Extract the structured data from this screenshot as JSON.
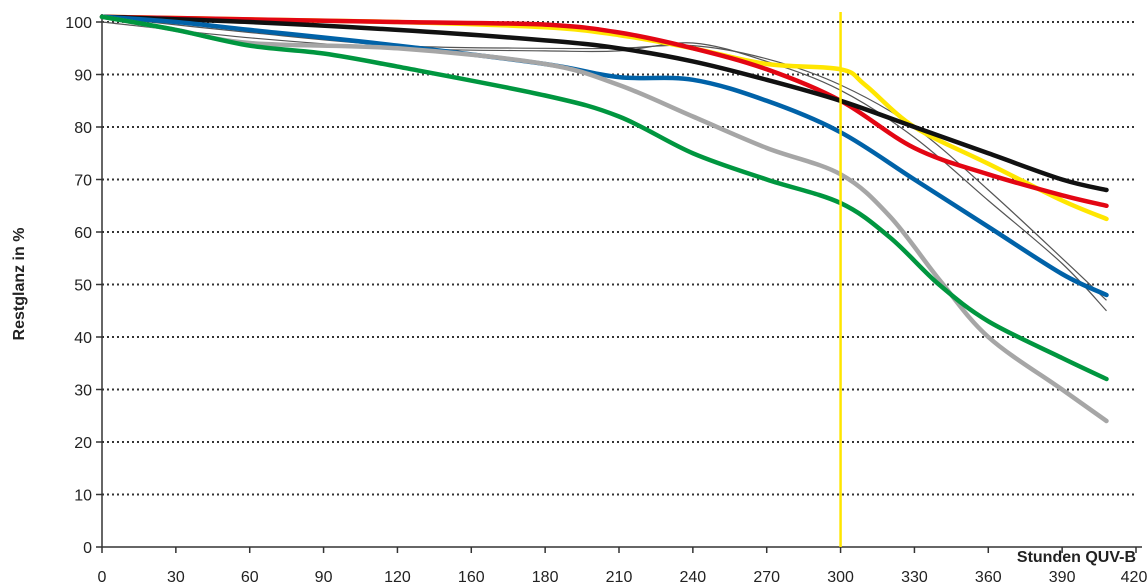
{
  "chart_data": {
    "type": "line",
    "ylabel": "Restglanz in %",
    "xlabel": "Stunden QUV-B",
    "ylim": [
      0,
      100
    ],
    "yticks": [
      0,
      10,
      20,
      30,
      40,
      50,
      60,
      70,
      80,
      90,
      100
    ],
    "xtick_labels": [
      "0",
      "30",
      "60",
      "90",
      "120",
      "160",
      "180",
      "210",
      "240",
      "270",
      "300",
      "330",
      "360",
      "390",
      "420"
    ],
    "xlim": [
      0,
      420
    ],
    "grid": true,
    "reference_line": {
      "x": 300,
      "color": "#ffe600"
    },
    "series": [
      {
        "color": "#ffe600",
        "points": [
          [
            0,
            101
          ],
          [
            60,
            100.5
          ],
          [
            120,
            100
          ],
          [
            180,
            99
          ],
          [
            210,
            97.5
          ],
          [
            240,
            95
          ],
          [
            270,
            92
          ],
          [
            300,
            91
          ],
          [
            310,
            88
          ],
          [
            330,
            80
          ],
          [
            360,
            73
          ],
          [
            390,
            66
          ],
          [
            408,
            62.5
          ]
        ]
      },
      {
        "color": "#e30613",
        "points": [
          [
            0,
            101
          ],
          [
            60,
            100.5
          ],
          [
            120,
            100
          ],
          [
            180,
            99.5
          ],
          [
            210,
            98
          ],
          [
            240,
            95
          ],
          [
            270,
            91
          ],
          [
            300,
            85
          ],
          [
            330,
            76
          ],
          [
            360,
            71
          ],
          [
            390,
            67
          ],
          [
            408,
            65
          ]
        ]
      },
      {
        "color": "#111111",
        "points": [
          [
            0,
            101
          ],
          [
            60,
            100
          ],
          [
            120,
            98.5
          ],
          [
            180,
            96.5
          ],
          [
            210,
            95
          ],
          [
            240,
            92.5
          ],
          [
            270,
            89
          ],
          [
            300,
            85
          ],
          [
            330,
            80
          ],
          [
            360,
            75
          ],
          [
            390,
            70
          ],
          [
            408,
            68
          ]
        ]
      },
      {
        "color": "#0062a8",
        "points": [
          [
            0,
            101
          ],
          [
            30,
            100
          ],
          [
            60,
            98.5
          ],
          [
            120,
            95.5
          ],
          [
            180,
            92
          ],
          [
            210,
            89.5
          ],
          [
            240,
            89
          ],
          [
            270,
            85
          ],
          [
            300,
            79
          ],
          [
            330,
            70
          ],
          [
            360,
            61
          ],
          [
            390,
            52
          ],
          [
            408,
            48
          ]
        ]
      },
      {
        "color": "#a6a6a6",
        "points": [
          [
            0,
            101
          ],
          [
            30,
            98.5
          ],
          [
            60,
            96
          ],
          [
            120,
            95
          ],
          [
            180,
            92
          ],
          [
            210,
            88
          ],
          [
            240,
            82
          ],
          [
            270,
            76
          ],
          [
            300,
            71
          ],
          [
            320,
            63
          ],
          [
            340,
            51
          ],
          [
            360,
            40
          ],
          [
            390,
            30
          ],
          [
            408,
            24
          ]
        ]
      },
      {
        "color": "#00963f",
        "points": [
          [
            0,
            101
          ],
          [
            30,
            98.5
          ],
          [
            60,
            95.5
          ],
          [
            90,
            94
          ],
          [
            120,
            91.5
          ],
          [
            180,
            86
          ],
          [
            210,
            82
          ],
          [
            240,
            75
          ],
          [
            270,
            70
          ],
          [
            300,
            65.5
          ],
          [
            320,
            59
          ],
          [
            340,
            50
          ],
          [
            360,
            43
          ],
          [
            390,
            36
          ],
          [
            408,
            32
          ]
        ]
      }
    ],
    "thin_series": [
      {
        "color": "#555555",
        "points": [
          [
            0,
            101
          ],
          [
            60,
            98
          ],
          [
            120,
            95.5
          ],
          [
            180,
            95
          ],
          [
            210,
            95
          ],
          [
            240,
            95.5
          ],
          [
            270,
            93
          ],
          [
            300,
            88
          ],
          [
            330,
            80
          ],
          [
            360,
            68
          ],
          [
            390,
            55
          ],
          [
            408,
            47
          ]
        ]
      },
      {
        "color": "#555555",
        "points": [
          [
            0,
            100
          ],
          [
            60,
            97
          ],
          [
            120,
            95
          ],
          [
            180,
            94.5
          ],
          [
            210,
            94.5
          ],
          [
            240,
            96
          ],
          [
            270,
            92.5
          ],
          [
            300,
            87
          ],
          [
            330,
            78
          ],
          [
            360,
            66
          ],
          [
            390,
            54
          ],
          [
            408,
            45
          ]
        ]
      }
    ]
  }
}
